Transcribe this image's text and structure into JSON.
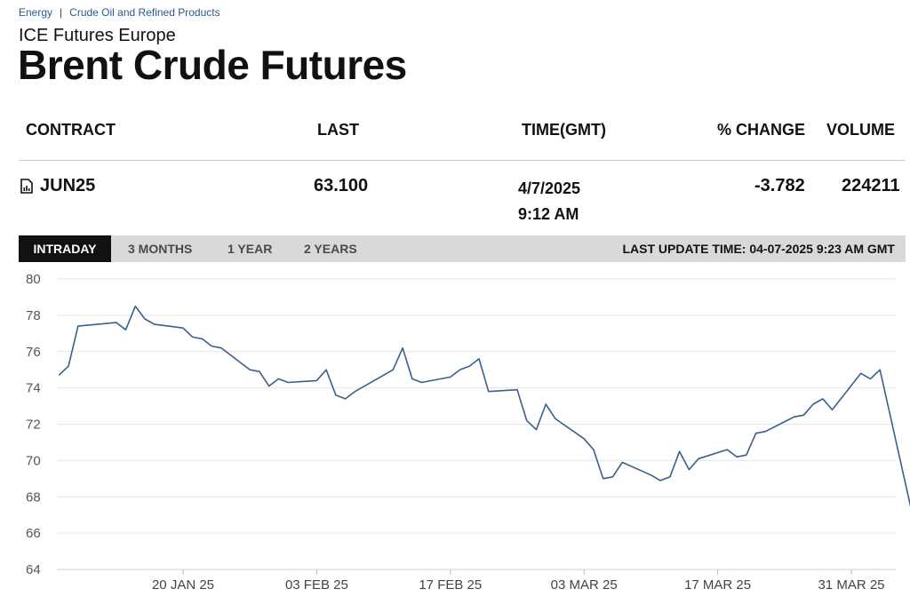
{
  "breadcrumb": {
    "items": [
      "Energy",
      "Crude Oil and Refined Products"
    ],
    "separator": "|"
  },
  "header": {
    "exchange": "ICE Futures Europe",
    "title": "Brent Crude Futures"
  },
  "table": {
    "headers": {
      "contract": "CONTRACT",
      "last": "LAST",
      "time": "TIME(GMT)",
      "change": "% CHANGE",
      "volume": "VOLUME"
    },
    "row": {
      "contract": "JUN25",
      "last": "63.100",
      "date": "4/7/2025",
      "time": "9:12 AM",
      "change": "-3.782",
      "volume": "224211",
      "icon": "chart-document-icon"
    }
  },
  "tabs": {
    "items": [
      "INTRADAY",
      "3 MONTHS",
      "1 YEAR",
      "2 YEARS"
    ],
    "active": "INTRADAY"
  },
  "last_update": "LAST UPDATE TIME: 04-07-2025 9:23 AM GMT",
  "colors": {
    "line": "#3b5f8c",
    "grid": "#e6e6e6",
    "tab_active_bg": "#111111",
    "tab_bar_bg": "#d9d9d9",
    "link": "#2b5a8a"
  },
  "chart_data": {
    "type": "line",
    "title": "",
    "xlabel": "",
    "ylabel": "",
    "ylim": [
      64,
      80
    ],
    "yticks": [
      80,
      78,
      76,
      74,
      72,
      70,
      68,
      66,
      64
    ],
    "grid": true,
    "xtick_labels": [
      {
        "label": "20 JAN 25",
        "date": "2025-01-20"
      },
      {
        "label": "03 FEB 25",
        "date": "2025-02-03"
      },
      {
        "label": "17 FEB 25",
        "date": "2025-02-17"
      },
      {
        "label": "03 MAR 25",
        "date": "2025-03-03"
      },
      {
        "label": "17 MAR 25",
        "date": "2025-03-17"
      },
      {
        "label": "31 MAR 25",
        "date": "2025-03-31"
      }
    ],
    "series": [
      {
        "points": [
          [
            "2025-01-07",
            74.7
          ],
          [
            "2025-01-08",
            75.2
          ],
          [
            "2025-01-09",
            77.4
          ],
          [
            "2025-01-13",
            77.6
          ],
          [
            "2025-01-14",
            77.2
          ],
          [
            "2025-01-15",
            78.5
          ],
          [
            "2025-01-16",
            77.8
          ],
          [
            "2025-01-17",
            77.5
          ],
          [
            "2025-01-20",
            77.3
          ],
          [
            "2025-01-21",
            76.8
          ],
          [
            "2025-01-22",
            76.7
          ],
          [
            "2025-01-23",
            76.3
          ],
          [
            "2025-01-24",
            76.2
          ],
          [
            "2025-01-27",
            75.0
          ],
          [
            "2025-01-28",
            74.9
          ],
          [
            "2025-01-29",
            74.1
          ],
          [
            "2025-01-30",
            74.5
          ],
          [
            "2025-01-31",
            74.3
          ],
          [
            "2025-02-03",
            74.4
          ],
          [
            "2025-02-04",
            75.0
          ],
          [
            "2025-02-05",
            73.6
          ],
          [
            "2025-02-06",
            73.4
          ],
          [
            "2025-02-07",
            73.8
          ],
          [
            "2025-02-10",
            74.7
          ],
          [
            "2025-02-11",
            75.0
          ],
          [
            "2025-02-12",
            76.2
          ],
          [
            "2025-02-13",
            74.5
          ],
          [
            "2025-02-14",
            74.3
          ],
          [
            "2025-02-17",
            74.6
          ],
          [
            "2025-02-18",
            75.0
          ],
          [
            "2025-02-19",
            75.2
          ],
          [
            "2025-02-20",
            75.6
          ],
          [
            "2025-02-21",
            73.8
          ],
          [
            "2025-02-24",
            73.9
          ],
          [
            "2025-02-25",
            72.2
          ],
          [
            "2025-02-26",
            71.7
          ],
          [
            "2025-02-27",
            73.1
          ],
          [
            "2025-02-28",
            72.3
          ],
          [
            "2025-03-03",
            71.2
          ],
          [
            "2025-03-04",
            70.6
          ],
          [
            "2025-03-05",
            69.0
          ],
          [
            "2025-03-06",
            69.1
          ],
          [
            "2025-03-07",
            69.9
          ],
          [
            "2025-03-10",
            69.2
          ],
          [
            "2025-03-11",
            68.9
          ],
          [
            "2025-03-12",
            69.1
          ],
          [
            "2025-03-13",
            70.5
          ],
          [
            "2025-03-14",
            69.5
          ],
          [
            "2025-03-15",
            70.1
          ],
          [
            "2025-03-18",
            70.6
          ],
          [
            "2025-03-19",
            70.2
          ],
          [
            "2025-03-20",
            70.3
          ],
          [
            "2025-03-21",
            71.5
          ],
          [
            "2025-03-22",
            71.6
          ],
          [
            "2025-03-25",
            72.4
          ],
          [
            "2025-03-26",
            72.5
          ],
          [
            "2025-03-27",
            73.1
          ],
          [
            "2025-03-28",
            73.4
          ],
          [
            "2025-03-29",
            72.8
          ],
          [
            "2025-04-01",
            74.8
          ],
          [
            "2025-04-02",
            74.5
          ],
          [
            "2025-04-03",
            75.0
          ],
          [
            "2025-04-07",
            65.6
          ]
        ]
      }
    ]
  }
}
